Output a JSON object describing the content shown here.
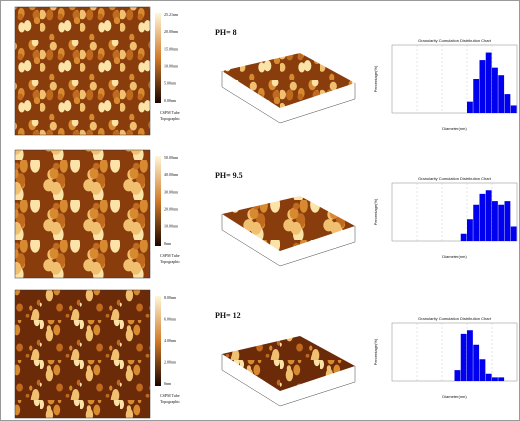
{
  "figure": {
    "panels": [
      {
        "label": "PH= 8",
        "scale_labels": [
          "25.21nm",
          "20.00nm",
          "15.00nm",
          "10.00nm",
          "5.00nm",
          "0.00nm"
        ],
        "caption": [
          "CSPM Tube",
          "Topographic"
        ],
        "histogram": {
          "title": "Granularity Cumulation Distribution Chart",
          "ylabel": "Percentage(%)",
          "xlabel": "Diameter(nm)",
          "values": [
            0,
            0,
            0,
            0,
            0,
            0,
            0,
            0,
            0,
            0,
            0,
            0,
            3,
            9,
            14,
            16,
            12,
            10,
            5,
            2
          ],
          "ylim": [
            0,
            18
          ],
          "color": "#0000ee"
        }
      },
      {
        "label": "PH= 9.5",
        "scale_labels": [
          "50.00nm",
          "40.00nm",
          "30.00nm",
          "20.00nm",
          "10.00nm",
          "0nm"
        ],
        "caption": [
          "CSPM Tube",
          "Topographic"
        ],
        "histogram": {
          "title": "Granularity Cumulation Distribution Chart",
          "ylabel": "Percentage(%)",
          "xlabel": "Diameter(nm)",
          "values": [
            0,
            0,
            0,
            0,
            0,
            0,
            0,
            0,
            0,
            0,
            0,
            2,
            6,
            10,
            13,
            14,
            11,
            10,
            11,
            4
          ],
          "ylim": [
            0,
            16
          ],
          "color": "#0000ee"
        }
      },
      {
        "label": "PH= 12",
        "scale_labels": [
          "8.00nm",
          "6.00nm",
          "4.00nm",
          "2.00nm",
          "0nm"
        ],
        "caption": [
          "CSPM Tube",
          "Topographic"
        ],
        "histogram": {
          "title": "Granularity Cumulation Distribution Chart",
          "ylabel": "Percentage(%)",
          "xlabel": "Diameter(nm)",
          "values": [
            0,
            0,
            0,
            0,
            0,
            0,
            0,
            0,
            0,
            0,
            3,
            13,
            14,
            10,
            6,
            2,
            1,
            1,
            0,
            0
          ],
          "ylim": [
            0,
            16
          ],
          "color": "#0000ee"
        }
      }
    ]
  }
}
